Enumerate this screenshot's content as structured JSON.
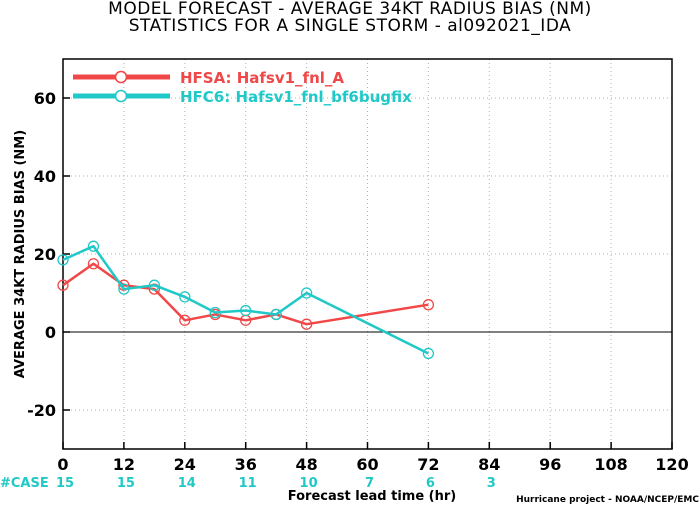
{
  "title_line1": "MODEL FORECAST - AVERAGE 34KT RADIUS BIAS (NM)",
  "title_line2": "STATISTICS FOR A SINGLE STORM - al092021_IDA",
  "credit": "Hurricane project - NOAA/NCEP/EMC",
  "case_label": "#CASE",
  "case_counts": [
    {
      "x": 0,
      "label": "15"
    },
    {
      "x": 12,
      "label": "15"
    },
    {
      "x": 24,
      "label": "14"
    },
    {
      "x": 36,
      "label": "11"
    },
    {
      "x": 48,
      "label": "10"
    },
    {
      "x": 60,
      "label": "7"
    },
    {
      "x": 72,
      "label": "6"
    },
    {
      "x": 84,
      "label": "3"
    }
  ],
  "colors": {
    "hfsa": "#f04848",
    "hfc6": "#20c8c8",
    "zero_line": "#000000",
    "grid": "#b0b0b0"
  },
  "chart_data": {
    "type": "line",
    "xlabel": "Forecast lead time (hr)",
    "ylabel": "AVERAGE 34KT RADIUS BIAS (NM)",
    "xlim": [
      0,
      120
    ],
    "ylim": [
      -30,
      70
    ],
    "xticks": [
      0,
      12,
      24,
      36,
      48,
      60,
      72,
      84,
      96,
      108,
      120
    ],
    "yticks": [
      -20,
      0,
      20,
      40,
      60
    ],
    "grid": true,
    "legend_position": "top-left",
    "series": [
      {
        "name": "HFSA: Hafsv1_fnl_A",
        "color": "#f04848",
        "x": [
          0,
          6,
          12,
          18,
          24,
          30,
          36,
          42,
          48,
          72
        ],
        "y": [
          12.0,
          17.5,
          12.0,
          11.0,
          3.0,
          4.5,
          3.0,
          4.5,
          2.0,
          7.0
        ]
      },
      {
        "name": "HFC6: Hafsv1_fnl_bf6bugfix",
        "color": "#20c8c8",
        "x": [
          0,
          6,
          12,
          18,
          24,
          30,
          36,
          42,
          48,
          72
        ],
        "y": [
          18.5,
          22.0,
          11.0,
          12.0,
          9.0,
          5.0,
          5.5,
          4.5,
          10.0,
          -5.5
        ]
      }
    ]
  }
}
